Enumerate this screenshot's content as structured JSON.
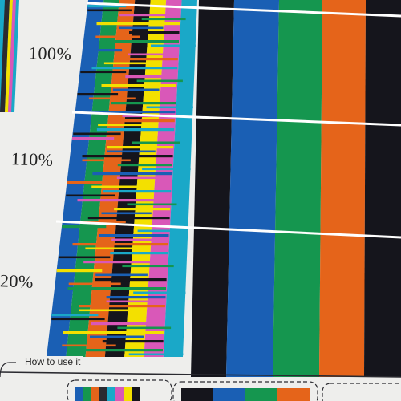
{
  "labels": {
    "pct_100": "100%",
    "pct_110": "110%",
    "pct_120": "20%",
    "how_to": "How to use it"
  },
  "colors": {
    "paper": "#eeeeec",
    "black": "#15151c",
    "blue": "#1a5fb4",
    "green": "#15964f",
    "orange": "#e5641a",
    "cyan": "#1aa8c8",
    "magenta": "#d958b8",
    "yellow": "#f3e000",
    "ink": "#2a2a30"
  }
}
